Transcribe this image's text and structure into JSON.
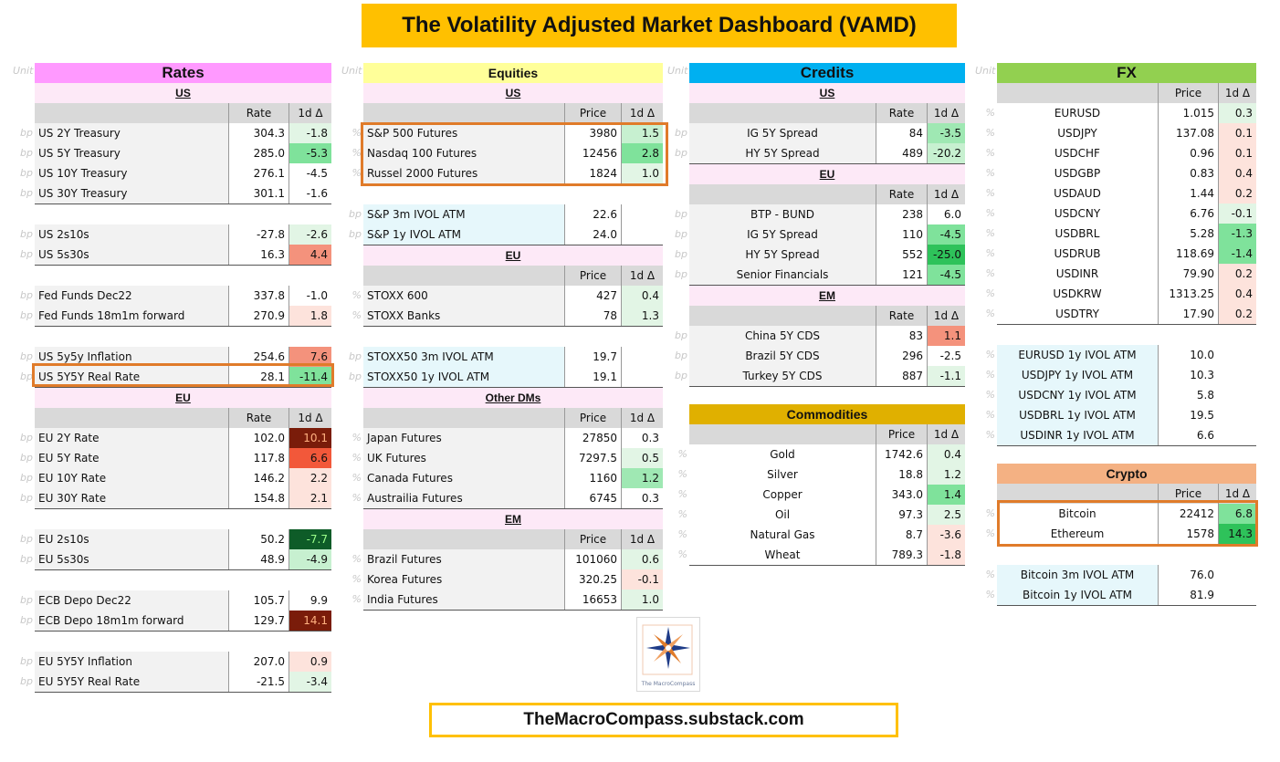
{
  "title": "The Volatility Adjusted Market Dashboard (VAMD)",
  "footer": "TheMacroCompass.substack.com",
  "logo_text": "The MacroCompass",
  "unit_label": "Unit",
  "colors": {
    "title_bg": "#ffc000",
    "rates_head": "#ff99ff",
    "equities_head": "#ffff99",
    "credits_head": "#00b0f0",
    "fx_head": "#92d050",
    "commodities_head": "#e0b000",
    "crypto_head": "#f4b183",
    "highlight_border": "#e07b2a"
  },
  "rates": {
    "title": "Rates",
    "sections": [
      {
        "label": "US",
        "cols": [
          "Rate",
          "1d Δ"
        ],
        "groups": [
          [
            {
              "u": "bp",
              "n": "US 2Y Treasury",
              "v": "304.3",
              "c": "-1.8",
              "bg": "#e2f5e5"
            },
            {
              "u": "bp",
              "n": "US 5Y Treasury",
              "v": "285.0",
              "c": "-5.3",
              "bg": "#7fe29b"
            },
            {
              "u": "bp",
              "n": "US 10Y Treasury",
              "v": "276.1",
              "c": "-4.5",
              "bg": "#ffffff"
            },
            {
              "u": "bp",
              "n": "US 30Y Treasury",
              "v": "301.1",
              "c": "-1.6",
              "bg": "#ffffff"
            }
          ],
          [
            {
              "u": "bp",
              "n": "US 2s10s",
              "v": "-27.8",
              "c": "-2.6",
              "bg": "#e2f5e5"
            },
            {
              "u": "bp",
              "n": "US 5s30s",
              "v": "16.3",
              "c": "4.4",
              "bg": "#f4927c"
            }
          ],
          [
            {
              "u": "bp",
              "n": "Fed Funds Dec22",
              "v": "337.8",
              "c": "-1.0",
              "bg": "#ffffff"
            },
            {
              "u": "bp",
              "n": "Fed Funds 18m1m forward",
              "v": "270.9",
              "c": "1.8",
              "bg": "#fde3dc"
            }
          ],
          [
            {
              "u": "bp",
              "n": "US 5y5y Inflation",
              "v": "254.6",
              "c": "7.6",
              "bg": "#f4927c"
            },
            {
              "u": "bp",
              "n": "US 5Y5Y Real Rate",
              "v": "28.1",
              "c": "-11.4",
              "bg": "#7fe29b"
            }
          ]
        ]
      },
      {
        "label": "EU",
        "cols": [
          "Rate",
          "1d Δ"
        ],
        "groups": [
          [
            {
              "u": "bp",
              "n": "EU 2Y Rate",
              "v": "102.0",
              "c": "10.1",
              "bg": "#7a1c0a"
            },
            {
              "u": "bp",
              "n": "EU 5Y Rate",
              "v": "117.8",
              "c": "6.6",
              "bg": "#f2583a"
            },
            {
              "u": "bp",
              "n": "EU 10Y Rate",
              "v": "146.2",
              "c": "2.2",
              "bg": "#fde3dc"
            },
            {
              "u": "bp",
              "n": "EU 30Y Rate",
              "v": "154.8",
              "c": "2.1",
              "bg": "#fde3dc"
            }
          ],
          [
            {
              "u": "bp",
              "n": "EU 2s10s",
              "v": "50.2",
              "c": "-7.7",
              "bg": "#0e5c28"
            },
            {
              "u": "bp",
              "n": "EU 5s30s",
              "v": "48.9",
              "c": "-4.9",
              "bg": "#c7f0d0"
            }
          ],
          [
            {
              "u": "bp",
              "n": "ECB Depo Dec22",
              "v": "105.7",
              "c": "9.9",
              "bg": "#ffffff"
            },
            {
              "u": "bp",
              "n": "ECB Depo 18m1m forward",
              "v": "129.7",
              "c": "14.1",
              "bg": "#7a1c0a"
            }
          ],
          [
            {
              "u": "bp",
              "n": "EU 5Y5Y Inflation",
              "v": "207.0",
              "c": "0.9",
              "bg": "#fde3dc"
            },
            {
              "u": "bp",
              "n": "EU 5Y5Y Real Rate",
              "v": "-21.5",
              "c": "-3.4",
              "bg": "#e2f5e5"
            }
          ]
        ]
      }
    ]
  },
  "equities": {
    "title": "Equities",
    "sections": [
      {
        "label": "US",
        "cols": [
          "Price",
          "1d Δ"
        ],
        "groups": [
          [
            {
              "u": "%",
              "n": "S&P 500 Futures",
              "v": "3980",
              "c": "1.5",
              "bg": "#c7f0d0"
            },
            {
              "u": "%",
              "n": "Nasdaq 100 Futures",
              "v": "12456",
              "c": "2.8",
              "bg": "#7fe29b"
            },
            {
              "u": "%",
              "n": "Russel 2000 Futures",
              "v": "1824",
              "c": "1.0",
              "bg": "#e2f5e5"
            }
          ],
          [
            {
              "u": "bp",
              "n": "S&P 3m IVOL ATM",
              "v": "22.6",
              "c": "",
              "bg": "#ffffff"
            },
            {
              "u": "bp",
              "n": "S&P 1y IVOL ATM",
              "v": "24.0",
              "c": "",
              "bg": "#ffffff"
            }
          ]
        ]
      },
      {
        "label": "EU",
        "cols": [
          "Price",
          "1d Δ"
        ],
        "groups": [
          [
            {
              "u": "%",
              "n": "STOXX 600",
              "v": "427",
              "c": "0.4",
              "bg": "#e2f5e5"
            },
            {
              "u": "%",
              "n": "STOXX Banks",
              "v": "78",
              "c": "1.3",
              "bg": "#e2f5e5"
            }
          ],
          [
            {
              "u": "bp",
              "n": "STOXX50 3m IVOL ATM",
              "v": "19.7",
              "c": "",
              "bg": "#ffffff"
            },
            {
              "u": "bp",
              "n": "STOXX50 1y IVOL ATM",
              "v": "19.1",
              "c": "",
              "bg": "#ffffff"
            }
          ]
        ]
      },
      {
        "label": "Other DMs",
        "cols": [
          "Price",
          "1d Δ"
        ],
        "groups": [
          [
            {
              "u": "%",
              "n": "Japan Futures",
              "v": "27850",
              "c": "0.3",
              "bg": "#ffffff"
            },
            {
              "u": "%",
              "n": "UK Futures",
              "v": "7297.5",
              "c": "0.5",
              "bg": "#e2f5e5"
            },
            {
              "u": "%",
              "n": "Canada Futures",
              "v": "1160",
              "c": "1.2",
              "bg": "#9fe8b3"
            },
            {
              "u": "%",
              "n": "Austrailia Futures",
              "v": "6745",
              "c": "0.3",
              "bg": "#ffffff"
            }
          ]
        ]
      },
      {
        "label": "EM",
        "cols": [
          "Price",
          "1d Δ"
        ],
        "groups": [
          [
            {
              "u": "%",
              "n": "Brazil Futures",
              "v": "101060",
              "c": "0.6",
              "bg": "#e2f5e5"
            },
            {
              "u": "%",
              "n": "Korea Futures",
              "v": "320.25",
              "c": "-0.1",
              "bg": "#fde3dc"
            },
            {
              "u": "%",
              "n": "India Futures",
              "v": "16653",
              "c": "1.0",
              "bg": "#e2f5e5"
            }
          ]
        ]
      }
    ]
  },
  "credits": {
    "title": "Credits",
    "sections": [
      {
        "label": "US",
        "cols": [
          "Rate",
          "1d Δ"
        ],
        "groups": [
          [
            {
              "u": "bp",
              "n": "IG 5Y Spread",
              "v": "84",
              "c": "-3.5",
              "bg": "#9fe8b3"
            },
            {
              "u": "bp",
              "n": "HY 5Y Spread",
              "v": "489",
              "c": "-20.2",
              "bg": "#c7f0d0"
            }
          ]
        ]
      },
      {
        "label": "EU",
        "cols": [
          "Rate",
          "1d Δ"
        ],
        "groups": [
          [
            {
              "u": "bp",
              "n": "BTP - BUND",
              "v": "238",
              "c": "6.0",
              "bg": "#ffffff"
            },
            {
              "u": "bp",
              "n": "IG 5Y Spread",
              "v": "110",
              "c": "-4.5",
              "bg": "#7fe29b"
            },
            {
              "u": "bp",
              "n": "HY 5Y Spread",
              "v": "552",
              "c": "-25.0",
              "bg": "#2ec25a"
            },
            {
              "u": "bp",
              "n": "Senior Financials",
              "v": "121",
              "c": "-4.5",
              "bg": "#7fe29b"
            }
          ]
        ]
      },
      {
        "label": "EM",
        "cols": [
          "Rate",
          "1d Δ"
        ],
        "groups": [
          [
            {
              "u": "bp",
              "n": "China 5Y CDS",
              "v": "83",
              "c": "1.1",
              "bg": "#f4927c"
            },
            {
              "u": "bp",
              "n": "Brazil 5Y CDS",
              "v": "296",
              "c": "-2.5",
              "bg": "#ffffff"
            },
            {
              "u": "bp",
              "n": "Turkey 5Y CDS",
              "v": "887",
              "c": "-1.1",
              "bg": "#e2f5e5"
            }
          ]
        ]
      }
    ]
  },
  "commodities": {
    "title": "Commodities",
    "cols": [
      "Price",
      "1d Δ"
    ],
    "rows": [
      {
        "u": "%",
        "n": "Gold",
        "v": "1742.6",
        "c": "0.4",
        "bg": "#e2f5e5"
      },
      {
        "u": "%",
        "n": "Silver",
        "v": "18.8",
        "c": "1.2",
        "bg": "#e2f5e5"
      },
      {
        "u": "%",
        "n": "Copper",
        "v": "343.0",
        "c": "1.4",
        "bg": "#7fe29b"
      },
      {
        "u": "%",
        "n": "Oil",
        "v": "97.3",
        "c": "2.5",
        "bg": "#e2f5e5"
      },
      {
        "u": "%",
        "n": "Natural Gas",
        "v": "8.7",
        "c": "-3.6",
        "bg": "#fde3dc"
      },
      {
        "u": "%",
        "n": "Wheat",
        "v": "789.3",
        "c": "-1.8",
        "bg": "#fde3dc"
      }
    ]
  },
  "fx": {
    "title": "FX",
    "cols": [
      "Price",
      "1d Δ"
    ],
    "rows": [
      {
        "u": "%",
        "n": "EURUSD",
        "v": "1.015",
        "c": "0.3",
        "bg": "#e2f5e5"
      },
      {
        "u": "%",
        "n": "USDJPY",
        "v": "137.08",
        "c": "0.1",
        "bg": "#fde3dc"
      },
      {
        "u": "%",
        "n": "USDCHF",
        "v": "0.96",
        "c": "0.1",
        "bg": "#fde3dc"
      },
      {
        "u": "%",
        "n": "USDGBP",
        "v": "0.83",
        "c": "0.4",
        "bg": "#fde3dc"
      },
      {
        "u": "%",
        "n": "USDAUD",
        "v": "1.44",
        "c": "0.2",
        "bg": "#fde3dc"
      },
      {
        "u": "%",
        "n": "USDCNY",
        "v": "6.76",
        "c": "-0.1",
        "bg": "#e2f5e5"
      },
      {
        "u": "%",
        "n": "USDBRL",
        "v": "5.28",
        "c": "-1.3",
        "bg": "#7fe29b"
      },
      {
        "u": "%",
        "n": "USDRUB",
        "v": "118.69",
        "c": "-1.4",
        "bg": "#7fe29b"
      },
      {
        "u": "%",
        "n": "USDINR",
        "v": "79.90",
        "c": "0.2",
        "bg": "#fde3dc"
      },
      {
        "u": "%",
        "n": "USDKRW",
        "v": "1313.25",
        "c": "0.4",
        "bg": "#fde3dc"
      },
      {
        "u": "%",
        "n": "USDTRY",
        "v": "17.90",
        "c": "0.2",
        "bg": "#fde3dc"
      }
    ],
    "vol_rows": [
      {
        "u": "%",
        "n": "EURUSD 1y IVOL ATM",
        "v": "10.0"
      },
      {
        "u": "%",
        "n": "USDJPY 1y IVOL ATM",
        "v": "10.3"
      },
      {
        "u": "%",
        "n": "USDCNY 1y IVOL ATM",
        "v": "5.8"
      },
      {
        "u": "%",
        "n": "USDBRL 1y IVOL ATM",
        "v": "19.5"
      },
      {
        "u": "%",
        "n": "USDINR 1y IVOL ATM",
        "v": "6.6"
      }
    ]
  },
  "crypto": {
    "title": "Crypto",
    "cols": [
      "Price",
      "1d Δ"
    ],
    "rows": [
      {
        "u": "%",
        "n": "Bitcoin",
        "v": "22412",
        "c": "6.8",
        "bg": "#7fe29b"
      },
      {
        "u": "%",
        "n": "Ethereum",
        "v": "1578",
        "c": "14.3",
        "bg": "#2ec25a"
      }
    ],
    "vol_rows": [
      {
        "u": "%",
        "n": "Bitcoin 3m IVOL ATM",
        "v": "76.0"
      },
      {
        "u": "%",
        "n": "Bitcoin 1y IVOL ATM",
        "v": "81.9"
      }
    ]
  }
}
